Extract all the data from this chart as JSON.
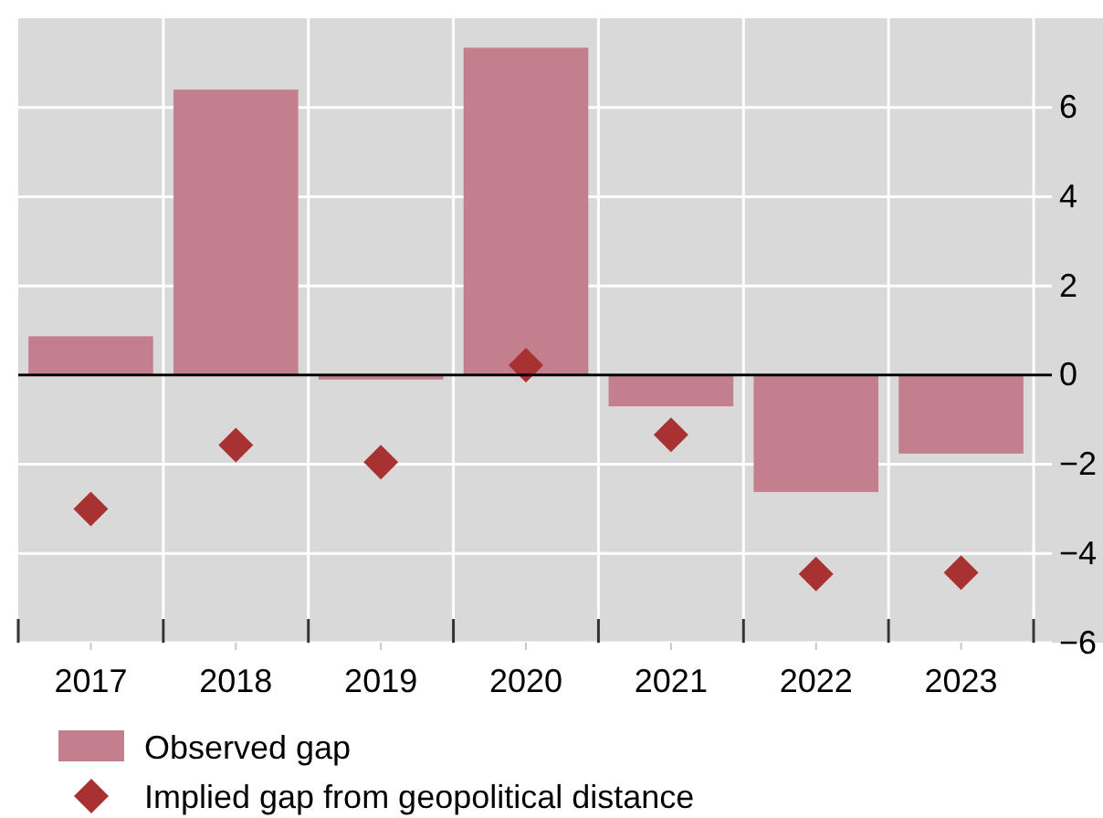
{
  "chart_data": {
    "type": "bar",
    "categories": [
      "2017",
      "2018",
      "2019",
      "2020",
      "2021",
      "2022",
      "2023"
    ],
    "series": [
      {
        "name": "Observed gap",
        "color": "#c47f8f",
        "values": [
          0.87,
          6.4,
          -0.1,
          7.34,
          -0.7,
          -2.62,
          -1.76
        ]
      },
      {
        "name": "Implied gap from geopolitical distance",
        "type": "scatter",
        "color": "#a83232",
        "values": [
          -3.0,
          -1.57,
          -1.95,
          0.22,
          -1.34,
          -4.46,
          -4.43
        ]
      }
    ],
    "marker": "diamond",
    "ylim": [
      -6,
      8
    ],
    "yticks": [
      -6,
      -4,
      -2,
      0,
      2,
      4,
      6
    ],
    "grid": true,
    "legend": "bottom left"
  }
}
